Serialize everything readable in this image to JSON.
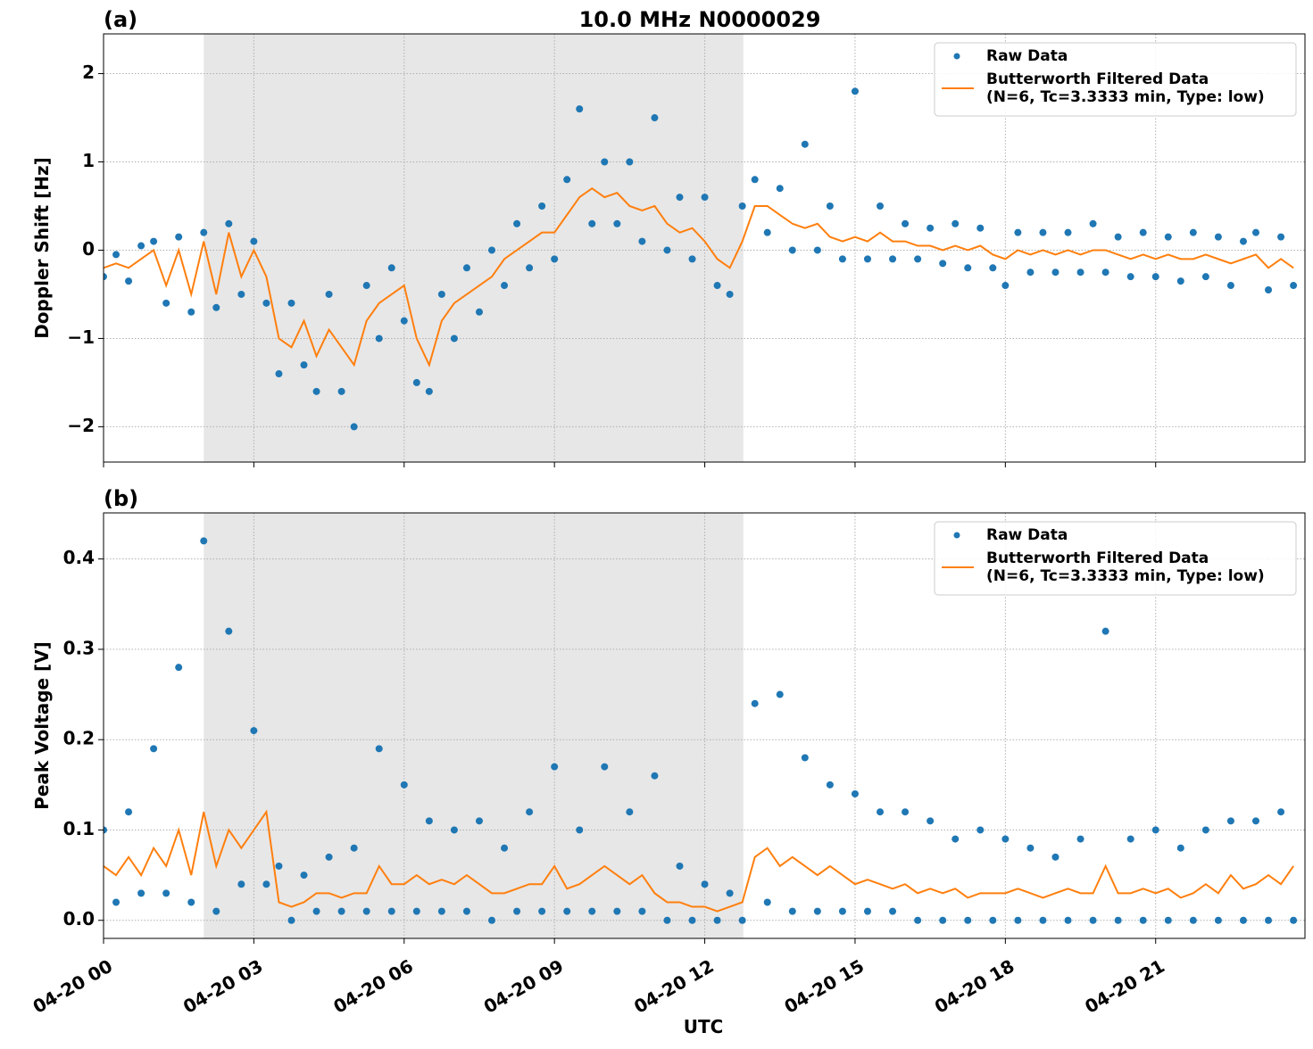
{
  "chart_data": [
    {
      "type": "scatter-line",
      "panel_label": "(a)",
      "title": "10.0 MHz N0000029",
      "y_label": "Doppler Shift [Hz]",
      "xlim": [
        0,
        23.98
      ],
      "xticks": [
        0,
        3,
        6,
        9,
        12,
        15,
        18,
        21
      ],
      "ylim": [
        -2.4,
        2.45
      ],
      "yticks": [
        {
          "value": -2,
          "label": "−2"
        },
        {
          "value": -1,
          "label": "−1"
        },
        {
          "value": 0,
          "label": "0"
        },
        1,
        2
      ],
      "grid": true,
      "legend": "upper right",
      "shaded_span": [
        2.0,
        12.77
      ],
      "series": [
        {
          "name": "Raw Data",
          "kind": "points",
          "color": "#1f77b4",
          "x": [
            0,
            0.25,
            0.5,
            0.75,
            1,
            1.25,
            1.5,
            1.75,
            2,
            2.25,
            2.5,
            2.75,
            3,
            3.25,
            3.5,
            3.75,
            4,
            4.25,
            4.5,
            4.75,
            5,
            5.25,
            5.5,
            5.75,
            6,
            6.25,
            6.5,
            6.75,
            7,
            7.25,
            7.5,
            7.75,
            8,
            8.25,
            8.5,
            8.75,
            9,
            9.25,
            9.5,
            9.75,
            10,
            10.25,
            10.5,
            10.75,
            11,
            11.25,
            11.5,
            11.75,
            12,
            12.25,
            12.5,
            12.75,
            13,
            13.25,
            13.5,
            13.75,
            14,
            14.25,
            14.5,
            14.75,
            15,
            15.25,
            15.5,
            15.75,
            16,
            16.25,
            16.5,
            16.75,
            17,
            17.25,
            17.5,
            17.75,
            18,
            18.25,
            18.5,
            18.75,
            19,
            19.25,
            19.5,
            19.75,
            20,
            20.25,
            20.5,
            20.75,
            21,
            21.25,
            21.5,
            21.75,
            22,
            22.25,
            22.5,
            22.75,
            23,
            23.25,
            23.5,
            23.75
          ],
          "values": [
            -0.3,
            -0.05,
            -0.35,
            0.05,
            0.1,
            -0.6,
            0.15,
            -0.7,
            0.2,
            -0.65,
            0.3,
            -0.5,
            0.1,
            -0.6,
            -1.4,
            -0.6,
            -1.3,
            -1.6,
            -0.5,
            -1.6,
            -2.0,
            -0.4,
            -1.0,
            -0.2,
            -0.8,
            -1.5,
            -1.6,
            -0.5,
            -1.0,
            -0.2,
            -0.7,
            0.0,
            -0.4,
            0.3,
            -0.2,
            0.5,
            -0.1,
            0.8,
            1.6,
            0.3,
            1.0,
            0.3,
            1.0,
            0.1,
            1.5,
            0.0,
            0.6,
            -0.1,
            0.6,
            -0.4,
            -0.5,
            0.5,
            0.8,
            0.2,
            0.7,
            0.0,
            1.2,
            0.0,
            0.5,
            -0.1,
            1.8,
            -0.1,
            0.5,
            -0.1,
            0.3,
            -0.1,
            0.25,
            -0.15,
            0.3,
            -0.2,
            0.25,
            -0.2,
            -0.4,
            0.2,
            -0.25,
            0.2,
            -0.25,
            0.2,
            -0.25,
            0.3,
            -0.25,
            0.15,
            -0.3,
            0.2,
            -0.3,
            0.15,
            -0.35,
            0.2,
            -0.3,
            0.15,
            -0.4,
            0.1,
            0.2,
            -0.45,
            0.15,
            -0.4
          ]
        },
        {
          "name": "Butterworth Filtered Data\n(N=6, Tc=3.3333 min, Type: low)",
          "kind": "line",
          "color": "#ff7f0e",
          "x": [
            0,
            0.25,
            0.5,
            0.75,
            1,
            1.25,
            1.5,
            1.75,
            2,
            2.25,
            2.5,
            2.75,
            3,
            3.25,
            3.5,
            3.75,
            4,
            4.25,
            4.5,
            4.75,
            5,
            5.25,
            5.5,
            5.75,
            6,
            6.25,
            6.5,
            6.75,
            7,
            7.25,
            7.5,
            7.75,
            8,
            8.25,
            8.5,
            8.75,
            9,
            9.25,
            9.5,
            9.75,
            10,
            10.25,
            10.5,
            10.75,
            11,
            11.25,
            11.5,
            11.75,
            12,
            12.25,
            12.5,
            12.75,
            13,
            13.25,
            13.5,
            13.75,
            14,
            14.25,
            14.5,
            14.75,
            15,
            15.25,
            15.5,
            15.75,
            16,
            16.25,
            16.5,
            16.75,
            17,
            17.25,
            17.5,
            17.75,
            18,
            18.25,
            18.5,
            18.75,
            19,
            19.25,
            19.5,
            19.75,
            20,
            20.25,
            20.5,
            20.75,
            21,
            21.25,
            21.5,
            21.75,
            22,
            22.25,
            22.5,
            22.75,
            23,
            23.25,
            23.5,
            23.75
          ],
          "values": [
            -0.2,
            -0.15,
            -0.2,
            -0.1,
            0.0,
            -0.4,
            0.0,
            -0.5,
            0.1,
            -0.5,
            0.2,
            -0.3,
            0.0,
            -0.3,
            -1.0,
            -1.1,
            -0.8,
            -1.2,
            -0.9,
            -1.1,
            -1.3,
            -0.8,
            -0.6,
            -0.5,
            -0.4,
            -1.0,
            -1.3,
            -0.8,
            -0.6,
            -0.5,
            -0.4,
            -0.3,
            -0.1,
            0.0,
            0.1,
            0.2,
            0.2,
            0.4,
            0.6,
            0.7,
            0.6,
            0.65,
            0.5,
            0.45,
            0.5,
            0.3,
            0.2,
            0.25,
            0.1,
            -0.1,
            -0.2,
            0.1,
            0.5,
            0.5,
            0.4,
            0.3,
            0.25,
            0.3,
            0.15,
            0.1,
            0.15,
            0.1,
            0.2,
            0.1,
            0.1,
            0.05,
            0.05,
            0.0,
            0.05,
            0.0,
            0.05,
            -0.05,
            -0.1,
            0.0,
            -0.05,
            0.0,
            -0.05,
            0.0,
            -0.05,
            0.0,
            0.0,
            -0.05,
            -0.1,
            -0.05,
            -0.1,
            -0.05,
            -0.1,
            -0.1,
            -0.05,
            -0.1,
            -0.15,
            -0.1,
            -0.05,
            -0.2,
            -0.1,
            -0.2
          ]
        }
      ]
    },
    {
      "type": "scatter-line",
      "panel_label": "(b)",
      "y_label": "Peak Voltage [V]",
      "x_label": "UTC",
      "xlim": [
        0,
        23.98
      ],
      "xticks": [
        {
          "value": 0,
          "label": "04-20 00"
        },
        {
          "value": 3,
          "label": "04-20 03"
        },
        {
          "value": 6,
          "label": "04-20 06"
        },
        {
          "value": 9,
          "label": "04-20 09"
        },
        {
          "value": 12,
          "label": "04-20 12"
        },
        {
          "value": 15,
          "label": "04-20 15"
        },
        {
          "value": 18,
          "label": "04-20 18"
        },
        {
          "value": 21,
          "label": "04-20 21"
        }
      ],
      "ylim": [
        -0.02,
        0.451
      ],
      "yticks": [
        {
          "value": 0,
          "label": "0.0"
        },
        0.1,
        0.2,
        0.3,
        0.4
      ],
      "grid": true,
      "legend": "upper right",
      "shaded_span": [
        2.0,
        12.77
      ],
      "series": [
        {
          "name": "Raw Data",
          "kind": "points",
          "color": "#1f77b4",
          "x": [
            0,
            0.25,
            0.5,
            0.75,
            1,
            1.25,
            1.5,
            1.75,
            2,
            2.25,
            2.5,
            2.75,
            3,
            3.25,
            3.5,
            3.75,
            4,
            4.25,
            4.5,
            4.75,
            5,
            5.25,
            5.5,
            5.75,
            6,
            6.25,
            6.5,
            6.75,
            7,
            7.25,
            7.5,
            7.75,
            8,
            8.25,
            8.5,
            8.75,
            9,
            9.25,
            9.5,
            9.75,
            10,
            10.25,
            10.5,
            10.75,
            11,
            11.25,
            11.5,
            11.75,
            12,
            12.25,
            12.5,
            12.75,
            13,
            13.25,
            13.5,
            13.75,
            14,
            14.25,
            14.5,
            14.75,
            15,
            15.25,
            15.5,
            15.75,
            16,
            16.25,
            16.5,
            16.75,
            17,
            17.25,
            17.5,
            17.75,
            18,
            18.25,
            18.5,
            18.75,
            19,
            19.25,
            19.5,
            19.75,
            20,
            20.25,
            20.5,
            20.75,
            21,
            21.25,
            21.5,
            21.75,
            22,
            22.25,
            22.5,
            22.75,
            23,
            23.25,
            23.5,
            23.75
          ],
          "values": [
            0.1,
            0.02,
            0.12,
            0.03,
            0.19,
            0.03,
            0.28,
            0.02,
            0.42,
            0.01,
            0.32,
            0.04,
            0.21,
            0.04,
            0.06,
            0.0,
            0.05,
            0.01,
            0.07,
            0.01,
            0.08,
            0.01,
            0.19,
            0.01,
            0.15,
            0.01,
            0.11,
            0.01,
            0.1,
            0.01,
            0.11,
            0.0,
            0.08,
            0.01,
            0.12,
            0.01,
            0.17,
            0.01,
            0.1,
            0.01,
            0.17,
            0.01,
            0.12,
            0.01,
            0.16,
            0.0,
            0.06,
            0.0,
            0.04,
            0.0,
            0.03,
            0.0,
            0.24,
            0.02,
            0.25,
            0.01,
            0.18,
            0.01,
            0.15,
            0.01,
            0.14,
            0.01,
            0.12,
            0.01,
            0.12,
            0.0,
            0.11,
            0.0,
            0.09,
            0.0,
            0.1,
            0.0,
            0.09,
            0.0,
            0.08,
            0.0,
            0.07,
            0.0,
            0.09,
            0.0,
            0.32,
            0.0,
            0.09,
            0.0,
            0.1,
            0.0,
            0.08,
            0.0,
            0.1,
            0.0,
            0.11,
            0.0,
            0.11,
            0.0,
            0.12,
            0.0
          ]
        },
        {
          "name": "Butterworth Filtered Data\n(N=6, Tc=3.3333 min, Type: low)",
          "kind": "line",
          "color": "#ff7f0e",
          "x": [
            0,
            0.25,
            0.5,
            0.75,
            1,
            1.25,
            1.5,
            1.75,
            2,
            2.25,
            2.5,
            2.75,
            3,
            3.25,
            3.5,
            3.75,
            4,
            4.25,
            4.5,
            4.75,
            5,
            5.25,
            5.5,
            5.75,
            6,
            6.25,
            6.5,
            6.75,
            7,
            7.25,
            7.5,
            7.75,
            8,
            8.25,
            8.5,
            8.75,
            9,
            9.25,
            9.5,
            9.75,
            10,
            10.25,
            10.5,
            10.75,
            11,
            11.25,
            11.5,
            11.75,
            12,
            12.25,
            12.5,
            12.75,
            13,
            13.25,
            13.5,
            13.75,
            14,
            14.25,
            14.5,
            14.75,
            15,
            15.25,
            15.5,
            15.75,
            16,
            16.25,
            16.5,
            16.75,
            17,
            17.25,
            17.5,
            17.75,
            18,
            18.25,
            18.5,
            18.75,
            19,
            19.25,
            19.5,
            19.75,
            20,
            20.25,
            20.5,
            20.75,
            21,
            21.25,
            21.5,
            21.75,
            22,
            22.25,
            22.5,
            22.75,
            23,
            23.25,
            23.5,
            23.75
          ],
          "values": [
            0.06,
            0.05,
            0.07,
            0.05,
            0.08,
            0.06,
            0.1,
            0.05,
            0.12,
            0.06,
            0.1,
            0.08,
            0.1,
            0.12,
            0.02,
            0.015,
            0.02,
            0.03,
            0.03,
            0.025,
            0.03,
            0.03,
            0.06,
            0.04,
            0.04,
            0.05,
            0.04,
            0.045,
            0.04,
            0.05,
            0.04,
            0.03,
            0.03,
            0.035,
            0.04,
            0.04,
            0.06,
            0.035,
            0.04,
            0.05,
            0.06,
            0.05,
            0.04,
            0.05,
            0.03,
            0.02,
            0.02,
            0.015,
            0.015,
            0.01,
            0.015,
            0.02,
            0.07,
            0.08,
            0.06,
            0.07,
            0.06,
            0.05,
            0.06,
            0.05,
            0.04,
            0.045,
            0.04,
            0.035,
            0.04,
            0.03,
            0.035,
            0.03,
            0.035,
            0.025,
            0.03,
            0.03,
            0.03,
            0.035,
            0.03,
            0.025,
            0.03,
            0.035,
            0.03,
            0.03,
            0.06,
            0.03,
            0.03,
            0.035,
            0.03,
            0.035,
            0.025,
            0.03,
            0.04,
            0.03,
            0.05,
            0.035,
            0.04,
            0.05,
            0.04,
            0.06
          ]
        }
      ]
    }
  ]
}
